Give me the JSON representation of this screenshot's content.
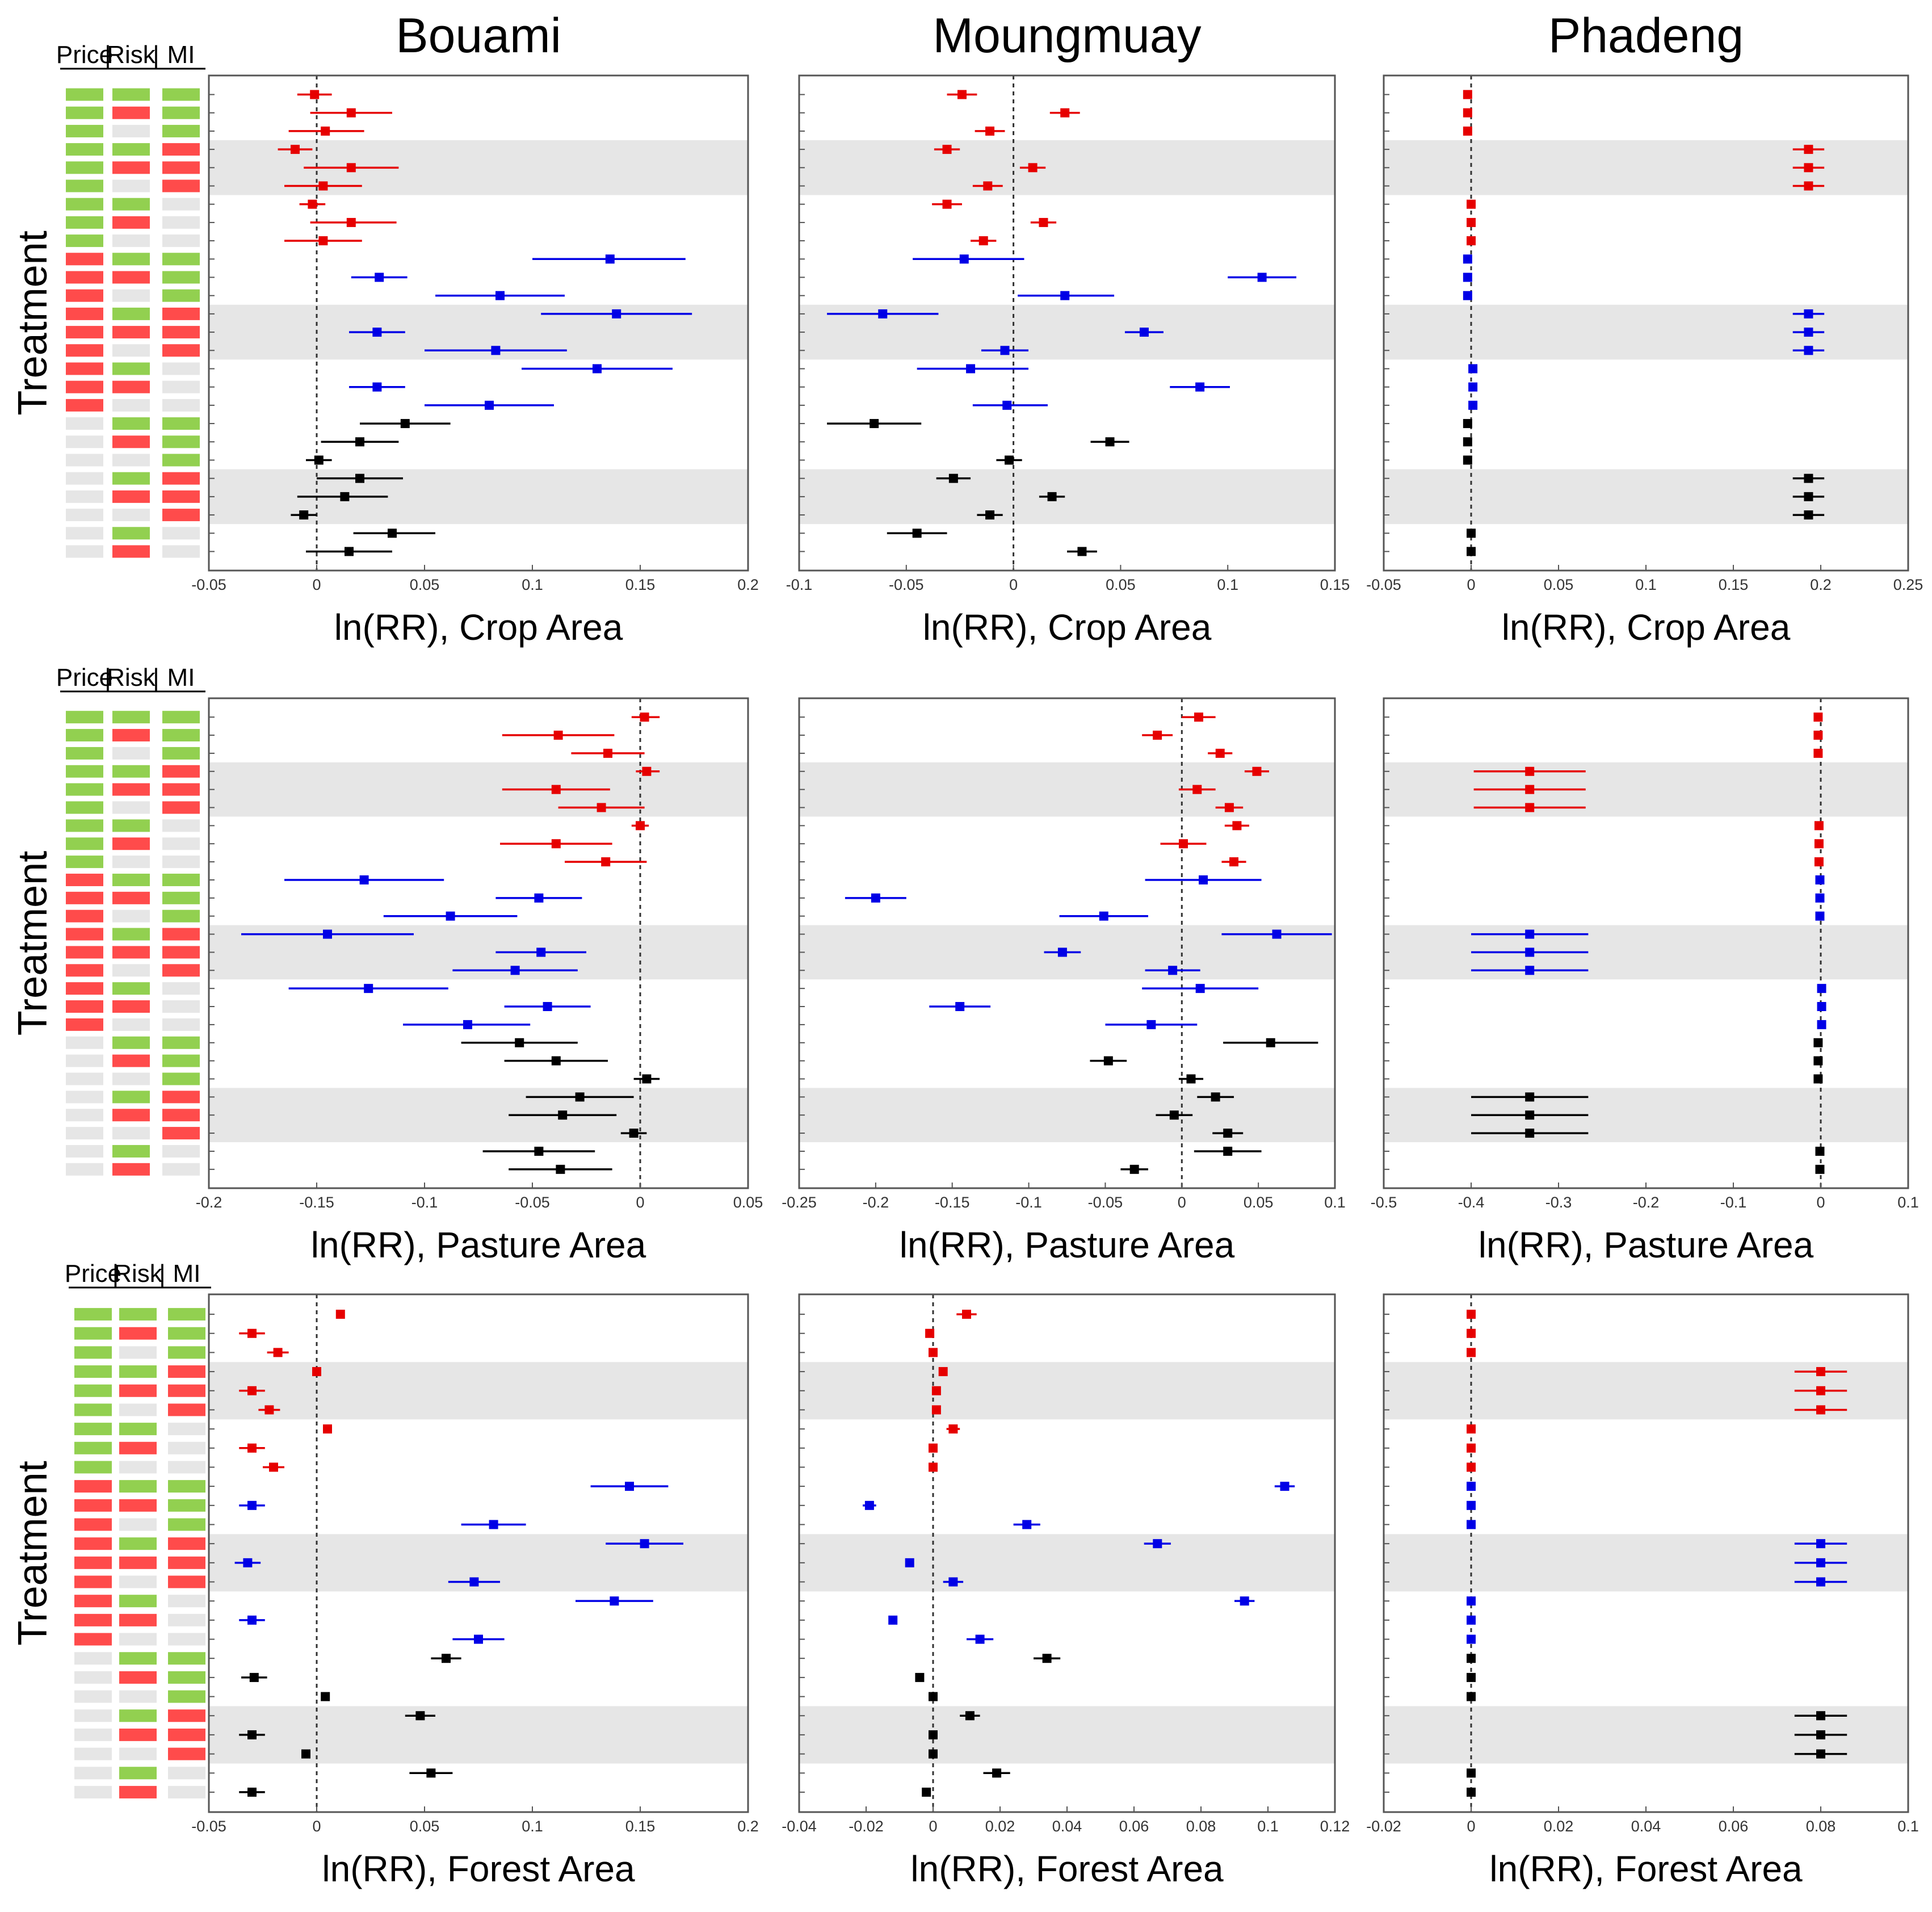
{
  "header_labels": [
    "Price",
    "Risk",
    "MI"
  ],
  "treatment_label": "Treatment",
  "colors": {
    "price_red": "#e60000",
    "risk_blue": "#0000e6",
    "mi_black": "#000000",
    "band_gray": "#e6e6e6",
    "matrix_green": "#92d050",
    "matrix_red": "#ff4b4b",
    "matrix_gray": "#e6e6e6"
  },
  "treatment_matrix": [
    [
      "g",
      "g",
      "g"
    ],
    [
      "g",
      "r",
      "g"
    ],
    [
      "g",
      "x",
      "g"
    ],
    [
      "g",
      "g",
      "r"
    ],
    [
      "g",
      "r",
      "r"
    ],
    [
      "g",
      "x",
      "r"
    ],
    [
      "g",
      "g",
      "x"
    ],
    [
      "g",
      "r",
      "x"
    ],
    [
      "g",
      "x",
      "x"
    ],
    [
      "r",
      "g",
      "g"
    ],
    [
      "r",
      "r",
      "g"
    ],
    [
      "r",
      "x",
      "g"
    ],
    [
      "r",
      "g",
      "r"
    ],
    [
      "r",
      "r",
      "r"
    ],
    [
      "r",
      "x",
      "r"
    ],
    [
      "r",
      "g",
      "x"
    ],
    [
      "r",
      "r",
      "x"
    ],
    [
      "r",
      "x",
      "x"
    ],
    [
      "x",
      "g",
      "g"
    ],
    [
      "x",
      "r",
      "g"
    ],
    [
      "x",
      "x",
      "g"
    ],
    [
      "x",
      "g",
      "r"
    ],
    [
      "x",
      "r",
      "r"
    ],
    [
      "x",
      "x",
      "r"
    ],
    [
      "x",
      "g",
      "x"
    ],
    [
      "x",
      "r",
      "x"
    ]
  ],
  "chart_data": [
    {
      "type": "scatter",
      "location": "Bouami",
      "title": "Bouami",
      "xlabel": "ln(RR), Crop Area",
      "xlim": [
        -0.05,
        0.2
      ],
      "xticks": [
        -0.05,
        0,
        0.05,
        0.1,
        0.15,
        0.2
      ],
      "tick_labels": [
        "-0.05",
        "0",
        "0.05",
        "0.1",
        "0.15",
        "0.2"
      ],
      "values": [
        -0.001,
        0.016,
        0.004,
        -0.01,
        0.016,
        0.003,
        -0.002,
        0.016,
        0.003,
        0.136,
        0.029,
        0.085,
        0.139,
        0.028,
        0.083,
        0.13,
        0.028,
        0.08,
        0.041,
        0.02,
        0.001,
        0.02,
        0.013,
        -0.006,
        0.035,
        0.015
      ],
      "lower": [
        -0.009,
        -0.003,
        -0.013,
        -0.018,
        -0.006,
        -0.015,
        -0.008,
        -0.003,
        -0.015,
        0.1,
        0.016,
        0.055,
        0.104,
        0.015,
        0.05,
        0.095,
        0.015,
        0.05,
        0.02,
        0.002,
        -0.005,
        0.0,
        -0.009,
        -0.012,
        0.017,
        -0.005
      ],
      "upper": [
        0.007,
        0.035,
        0.022,
        -0.002,
        0.038,
        0.021,
        0.004,
        0.037,
        0.021,
        0.171,
        0.042,
        0.115,
        0.174,
        0.041,
        0.116,
        0.165,
        0.041,
        0.11,
        0.062,
        0.038,
        0.007,
        0.04,
        0.033,
        0.0,
        0.055,
        0.035
      ]
    },
    {
      "type": "scatter",
      "location": "Moungmuay",
      "title": "Moungmuay",
      "xlabel": "ln(RR), Crop Area",
      "xlim": [
        -0.1,
        0.15
      ],
      "xticks": [
        -0.1,
        -0.05,
        0,
        0.05,
        0.1,
        0.15
      ],
      "tick_labels": [
        "-0.1",
        "-0.05",
        "0",
        "0.05",
        "0.1",
        "0.15"
      ],
      "values": [
        -0.024,
        0.024,
        -0.011,
        -0.031,
        0.009,
        -0.012,
        -0.031,
        0.014,
        -0.014,
        -0.023,
        0.116,
        0.024,
        -0.061,
        0.061,
        -0.004,
        -0.02,
        0.087,
        -0.003,
        -0.065,
        0.045,
        -0.002,
        -0.028,
        0.018,
        -0.011,
        -0.045,
        0.032
      ],
      "lower": [
        -0.031,
        0.017,
        -0.018,
        -0.037,
        0.003,
        -0.019,
        -0.038,
        0.008,
        -0.02,
        -0.047,
        0.1,
        0.002,
        -0.087,
        0.052,
        -0.015,
        -0.045,
        0.073,
        -0.019,
        -0.087,
        0.036,
        -0.008,
        -0.036,
        0.012,
        -0.017,
        -0.059,
        0.025
      ],
      "upper": [
        -0.017,
        0.031,
        -0.004,
        -0.025,
        0.015,
        -0.005,
        -0.024,
        0.02,
        -0.008,
        0.005,
        0.132,
        0.047,
        -0.035,
        0.07,
        0.007,
        0.007,
        0.101,
        0.016,
        -0.043,
        0.054,
        0.004,
        -0.02,
        0.024,
        -0.005,
        -0.031,
        0.039
      ]
    },
    {
      "type": "scatter",
      "location": "Phadeng",
      "title": "Phadeng",
      "xlabel": "ln(RR), Crop Area",
      "xlim": [
        -0.05,
        0.25
      ],
      "xticks": [
        -0.05,
        0,
        0.05,
        0.1,
        0.15,
        0.2,
        0.25
      ],
      "tick_labels": [
        "-0.05",
        "0",
        "0.05",
        "0.1",
        "0.15",
        "0.2",
        "0.25"
      ],
      "values": [
        -0.002,
        -0.002,
        -0.002,
        0.193,
        0.193,
        0.193,
        0.0,
        0.0,
        0.0,
        -0.002,
        -0.002,
        -0.002,
        0.193,
        0.193,
        0.193,
        0.001,
        0.001,
        0.001,
        -0.002,
        -0.002,
        -0.002,
        0.193,
        0.193,
        0.193,
        0.0,
        0.0
      ],
      "lower": [
        -0.003,
        -0.003,
        -0.003,
        0.184,
        0.184,
        0.184,
        -0.001,
        -0.001,
        -0.001,
        -0.003,
        -0.003,
        -0.003,
        0.184,
        0.184,
        0.184,
        0.0,
        0.0,
        0.0,
        -0.003,
        -0.003,
        -0.003,
        0.184,
        0.184,
        0.184,
        -0.001,
        -0.001
      ],
      "upper": [
        -0.001,
        -0.001,
        -0.001,
        0.202,
        0.202,
        0.202,
        0.001,
        0.001,
        0.001,
        -0.001,
        -0.001,
        -0.001,
        0.202,
        0.202,
        0.202,
        0.002,
        0.002,
        0.002,
        -0.001,
        -0.001,
        -0.001,
        0.202,
        0.202,
        0.202,
        0.001,
        0.001
      ]
    },
    {
      "type": "scatter",
      "location": "Bouami",
      "title": "",
      "xlabel": "ln(RR), Pasture Area",
      "xlim": [
        -0.2,
        0.05
      ],
      "xticks": [
        -0.2,
        -0.15,
        -0.1,
        -0.05,
        0,
        0.05
      ],
      "tick_labels": [
        "-0.2",
        "-0.15",
        "-0.1",
        "-0.05",
        "0",
        "0.05"
      ],
      "values": [
        0.002,
        -0.038,
        -0.015,
        0.003,
        -0.039,
        -0.018,
        0.0,
        -0.039,
        -0.016,
        -0.128,
        -0.047,
        -0.088,
        -0.145,
        -0.046,
        -0.058,
        -0.126,
        -0.043,
        -0.08,
        -0.056,
        -0.039,
        0.003,
        -0.028,
        -0.036,
        -0.003,
        -0.047,
        -0.037
      ],
      "lower": [
        -0.004,
        -0.064,
        -0.032,
        -0.002,
        -0.064,
        -0.038,
        -0.004,
        -0.065,
        -0.035,
        -0.165,
        -0.067,
        -0.119,
        -0.185,
        -0.067,
        -0.087,
        -0.163,
        -0.063,
        -0.11,
        -0.083,
        -0.063,
        -0.003,
        -0.053,
        -0.061,
        -0.009,
        -0.073,
        -0.061
      ],
      "upper": [
        0.009,
        -0.012,
        0.002,
        0.009,
        -0.014,
        0.002,
        0.004,
        -0.013,
        0.003,
        -0.091,
        -0.027,
        -0.057,
        -0.105,
        -0.025,
        -0.029,
        -0.089,
        -0.023,
        -0.051,
        -0.029,
        -0.015,
        0.009,
        -0.003,
        -0.011,
        0.003,
        -0.021,
        -0.013
      ]
    },
    {
      "type": "scatter",
      "location": "Moungmuay",
      "title": "",
      "xlabel": "ln(RR), Pasture Area",
      "xlim": [
        -0.25,
        0.1
      ],
      "xticks": [
        -0.25,
        -0.2,
        -0.15,
        -0.1,
        -0.05,
        0,
        0.05,
        0.1
      ],
      "tick_labels": [
        "-0.25",
        "-0.2",
        "-0.15",
        "-0.1",
        "-0.05",
        "0",
        "0.05",
        "0.1"
      ],
      "values": [
        0.011,
        -0.016,
        0.025,
        0.049,
        0.01,
        0.031,
        0.036,
        0.001,
        0.034,
        0.014,
        -0.2,
        -0.051,
        0.062,
        -0.078,
        -0.006,
        0.012,
        -0.145,
        -0.02,
        0.058,
        -0.048,
        0.006,
        0.022,
        -0.005,
        0.03,
        0.03,
        -0.031
      ],
      "lower": [
        0.0,
        -0.026,
        0.017,
        0.041,
        -0.002,
        0.022,
        0.028,
        -0.014,
        0.026,
        -0.024,
        -0.22,
        -0.08,
        0.026,
        -0.09,
        -0.024,
        -0.026,
        -0.165,
        -0.05,
        0.027,
        -0.06,
        -0.002,
        0.01,
        -0.017,
        0.02,
        0.008,
        -0.04
      ],
      "upper": [
        0.022,
        -0.006,
        0.033,
        0.057,
        0.022,
        0.04,
        0.044,
        0.016,
        0.042,
        0.052,
        -0.18,
        -0.022,
        0.098,
        -0.066,
        0.012,
        0.05,
        -0.125,
        0.01,
        0.089,
        -0.036,
        0.014,
        0.034,
        0.007,
        0.04,
        0.052,
        -0.022
      ]
    },
    {
      "type": "scatter",
      "location": "Phadeng",
      "title": "",
      "xlabel": "ln(RR), Pasture Area",
      "xlim": [
        -0.5,
        0.1
      ],
      "xticks": [
        -0.5,
        -0.4,
        -0.3,
        -0.2,
        -0.1,
        0,
        0.1
      ],
      "tick_labels": [
        "-0.5",
        "-0.4",
        "-0.3",
        "-0.2",
        "-0.1",
        "0",
        "0.1"
      ],
      "values": [
        -0.003,
        -0.003,
        -0.003,
        -0.333,
        -0.333,
        -0.333,
        -0.002,
        -0.002,
        -0.002,
        -0.001,
        -0.001,
        -0.001,
        -0.333,
        -0.333,
        -0.333,
        0.001,
        0.001,
        0.001,
        -0.003,
        -0.003,
        -0.003,
        -0.333,
        -0.333,
        -0.333,
        -0.001,
        -0.001
      ],
      "lower": [
        -0.006,
        -0.006,
        -0.006,
        -0.397,
        -0.397,
        -0.397,
        -0.005,
        -0.005,
        -0.005,
        -0.004,
        -0.004,
        -0.004,
        -0.4,
        -0.4,
        -0.4,
        -0.002,
        -0.002,
        -0.002,
        -0.006,
        -0.006,
        -0.006,
        -0.4,
        -0.4,
        -0.4,
        -0.004,
        -0.004
      ],
      "upper": [
        0.0,
        0.0,
        0.0,
        -0.269,
        -0.269,
        -0.269,
        0.001,
        0.001,
        0.001,
        0.002,
        0.002,
        0.002,
        -0.266,
        -0.266,
        -0.266,
        0.004,
        0.004,
        0.004,
        0.0,
        0.0,
        0.0,
        -0.266,
        -0.266,
        -0.266,
        0.002,
        0.002
      ]
    },
    {
      "type": "scatter",
      "location": "Bouami",
      "title": "",
      "xlabel": "ln(RR), Forest Area",
      "xlim": [
        -0.05,
        0.2
      ],
      "xticks": [
        -0.05,
        0,
        0.05,
        0.1,
        0.15,
        0.2
      ],
      "tick_labels": [
        "-0.05",
        "0",
        "0.05",
        "0.1",
        "0.15",
        "0.2"
      ],
      "values": [
        0.011,
        -0.03,
        -0.018,
        0.0,
        -0.03,
        -0.022,
        0.005,
        -0.03,
        -0.02,
        0.145,
        -0.03,
        0.082,
        0.152,
        -0.032,
        0.073,
        0.138,
        -0.03,
        0.075,
        0.06,
        -0.029,
        0.004,
        0.048,
        -0.03,
        -0.005,
        0.053,
        -0.03
      ],
      "lower": [
        0.009,
        -0.036,
        -0.023,
        -0.002,
        -0.036,
        -0.027,
        0.003,
        -0.036,
        -0.025,
        0.127,
        -0.036,
        0.067,
        0.134,
        -0.038,
        0.061,
        0.12,
        -0.036,
        0.063,
        0.053,
        -0.035,
        0.002,
        0.041,
        -0.036,
        -0.007,
        0.043,
        -0.036
      ],
      "upper": [
        0.013,
        -0.024,
        -0.013,
        0.002,
        -0.024,
        -0.017,
        0.007,
        -0.024,
        -0.015,
        0.163,
        -0.024,
        0.097,
        0.17,
        -0.026,
        0.085,
        0.156,
        -0.024,
        0.087,
        0.067,
        -0.023,
        0.006,
        0.055,
        -0.024,
        -0.003,
        0.063,
        -0.024
      ]
    },
    {
      "type": "scatter",
      "location": "Moungmuay",
      "title": "",
      "xlabel": "ln(RR), Forest Area",
      "xlim": [
        -0.04,
        0.12
      ],
      "xticks": [
        -0.04,
        -0.02,
        0,
        0.02,
        0.04,
        0.06,
        0.08,
        0.1,
        0.12
      ],
      "tick_labels": [
        "-0.04",
        "-0.02",
        "0",
        "0.02",
        "0.04",
        "0.06",
        "0.08",
        "0.1",
        "0.12"
      ],
      "values": [
        0.01,
        -0.001,
        0.0,
        0.003,
        0.001,
        0.001,
        0.006,
        0.0,
        0.0,
        0.105,
        -0.019,
        0.028,
        0.067,
        -0.007,
        0.006,
        0.093,
        -0.012,
        0.014,
        0.034,
        -0.004,
        0.0,
        0.011,
        0.0,
        0.0,
        0.019,
        -0.002
      ],
      "lower": [
        0.007,
        -0.002,
        -0.001,
        0.002,
        0.0,
        0.0,
        0.004,
        -0.001,
        -0.001,
        0.102,
        -0.021,
        0.024,
        0.063,
        -0.008,
        0.003,
        0.09,
        -0.013,
        0.01,
        0.03,
        -0.005,
        -0.001,
        0.008,
        -0.001,
        -0.001,
        0.015,
        -0.003
      ],
      "upper": [
        0.013,
        0.0,
        0.001,
        0.004,
        0.002,
        0.002,
        0.008,
        0.001,
        0.001,
        0.108,
        -0.017,
        0.032,
        0.071,
        -0.006,
        0.009,
        0.096,
        -0.011,
        0.018,
        0.038,
        -0.003,
        0.001,
        0.014,
        0.001,
        0.001,
        0.023,
        -0.001
      ]
    },
    {
      "type": "scatter",
      "location": "Phadeng",
      "title": "",
      "xlabel": "ln(RR), Forest Area",
      "xlim": [
        -0.02,
        0.1
      ],
      "xticks": [
        -0.02,
        0,
        0.02,
        0.04,
        0.06,
        0.08,
        0.1
      ],
      "tick_labels": [
        "-0.02",
        "0",
        "0.02",
        "0.04",
        "0.06",
        "0.08",
        "0.1"
      ],
      "values": [
        0.0,
        0.0,
        0.0,
        0.08,
        0.08,
        0.08,
        0.0,
        0.0,
        0.0,
        0.0,
        0.0,
        0.0,
        0.08,
        0.08,
        0.08,
        0.0,
        0.0,
        0.0,
        0.0,
        0.0,
        0.0,
        0.08,
        0.08,
        0.08,
        0.0,
        0.0
      ],
      "lower": [
        -0.0005,
        -0.0005,
        -0.0005,
        0.074,
        0.074,
        0.074,
        -0.0005,
        -0.0005,
        -0.0005,
        -0.0005,
        -0.0005,
        -0.0005,
        0.074,
        0.074,
        0.074,
        -0.0005,
        -0.0005,
        -0.0005,
        -0.0005,
        -0.0005,
        -0.0005,
        0.074,
        0.074,
        0.074,
        -0.0005,
        -0.0005
      ],
      "upper": [
        0.0005,
        0.0005,
        0.0005,
        0.086,
        0.086,
        0.086,
        0.0005,
        0.0005,
        0.0005,
        0.0005,
        0.0005,
        0.0005,
        0.086,
        0.086,
        0.086,
        0.0005,
        0.0005,
        0.0005,
        0.0005,
        0.0005,
        0.0005,
        0.086,
        0.086,
        0.086,
        0.0005,
        0.0005
      ]
    }
  ]
}
